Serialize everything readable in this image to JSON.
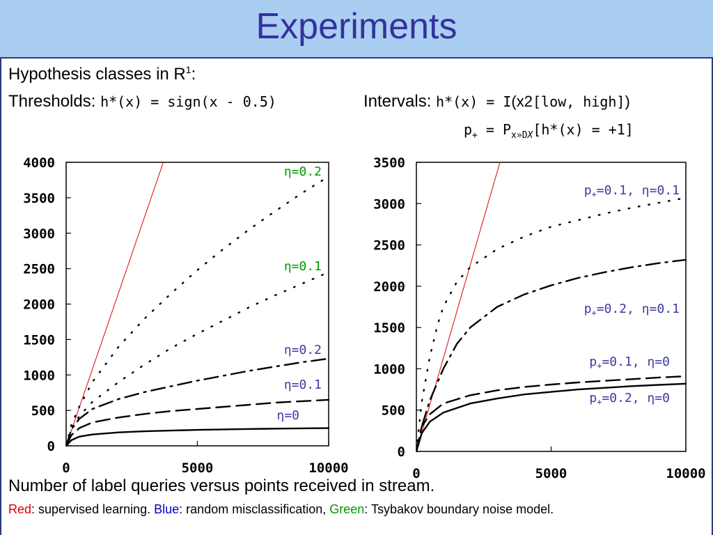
{
  "slide": {
    "title": "Experiments",
    "heading_text": "Hypothesis classes in R",
    "heading_sup": "1",
    "heading_colon": ":",
    "thresholds_label": "Thresholds:",
    "thresholds_formula": "h*(x) = sign(x - 0.5)",
    "intervals_label": "Intervals:",
    "intervals_formula_a": "h*(x) = I",
    "intervals_formula_b": "(x2",
    "intervals_formula_c": "[low, high]",
    "intervals_formula_d": ")",
    "pplus_lhs": "p",
    "pplus_lhs_sub": "+",
    "pplus_eq": " = P",
    "pplus_sub": "x»D",
    "pplus_sub_x": "X",
    "pplus_rhs": "[h*(x) = +1]",
    "caption_line1": "Number of label queries versus points received in stream.",
    "caption_red": "Red",
    "caption_red_rest": ": supervised learning. ",
    "caption_blue": "Blue",
    "caption_blue_rest": ": random misclassification, ",
    "caption_green": "Green",
    "caption_green_rest": ": Tsybakov boundary noise model."
  },
  "colors": {
    "header_bg": "#aacdf2",
    "title": "#35329b",
    "red": "#dd0000",
    "blue": "#0000cc",
    "green": "#009900",
    "annot_blue": "#3a3aa0",
    "annot_green": "#009900"
  },
  "chart_data": [
    {
      "type": "line",
      "xlim": [
        0,
        10000
      ],
      "ylim": [
        0,
        4000
      ],
      "xticks": [
        0,
        5000,
        10000
      ],
      "yticks": [
        0,
        500,
        1000,
        1500,
        2000,
        2500,
        3000,
        3500,
        4000
      ],
      "series": [
        {
          "label": "",
          "color": "#dd0000",
          "style": "solid-thin",
          "x": [
            0,
            3700
          ],
          "y": [
            0,
            4000
          ]
        },
        {
          "label": "η=0.2",
          "label_color": "green",
          "color": "#000000",
          "style": "dotted",
          "x": [
            0,
            200,
            500,
            1000,
            2000,
            3000,
            4000,
            5000,
            6000,
            7000,
            8000,
            9000,
            10000
          ],
          "y": [
            0,
            300,
            550,
            900,
            1400,
            1800,
            2150,
            2480,
            2780,
            3060,
            3320,
            3570,
            3800
          ]
        },
        {
          "label": "η=0.1",
          "label_color": "green",
          "color": "#000000",
          "style": "dotted",
          "x": [
            0,
            200,
            500,
            1000,
            2000,
            3000,
            4000,
            5000,
            6000,
            7000,
            8000,
            9000,
            10000
          ],
          "y": [
            0,
            250,
            420,
            620,
            900,
            1150,
            1380,
            1580,
            1770,
            1960,
            2130,
            2290,
            2450
          ]
        },
        {
          "label": "η=0.2",
          "label_color": "blue",
          "color": "#000000",
          "style": "dashdot",
          "x": [
            0,
            200,
            500,
            1000,
            2000,
            3000,
            4000,
            5000,
            6000,
            7000,
            8000,
            9000,
            10000
          ],
          "y": [
            0,
            230,
            380,
            520,
            660,
            760,
            840,
            920,
            990,
            1060,
            1120,
            1180,
            1230
          ]
        },
        {
          "label": "η=0.1",
          "label_color": "blue",
          "color": "#000000",
          "style": "dashed",
          "x": [
            0,
            200,
            500,
            1000,
            2000,
            3000,
            4000,
            5000,
            6000,
            7000,
            8000,
            9000,
            10000
          ],
          "y": [
            0,
            150,
            250,
            330,
            400,
            450,
            490,
            520,
            550,
            580,
            610,
            630,
            650
          ]
        },
        {
          "label": "η=0",
          "label_color": "blue",
          "color": "#000000",
          "style": "solid",
          "x": [
            0,
            200,
            500,
            1000,
            2000,
            3000,
            4000,
            5000,
            6000,
            7000,
            8000,
            9000,
            10000
          ],
          "y": [
            0,
            80,
            130,
            160,
            190,
            205,
            215,
            225,
            232,
            238,
            243,
            247,
            250
          ]
        }
      ]
    },
    {
      "type": "line",
      "xlim": [
        0,
        10000
      ],
      "ylim": [
        0,
        3500
      ],
      "xticks": [
        0,
        5000,
        10000
      ],
      "yticks": [
        0,
        500,
        1000,
        1500,
        2000,
        2500,
        3000,
        3500
      ],
      "series": [
        {
          "label": "",
          "color": "#dd0000",
          "style": "solid-thin",
          "x": [
            0,
            3100
          ],
          "y": [
            0,
            3500
          ]
        },
        {
          "label": "p+=0.1, η=0.1",
          "label_color": "blue",
          "color": "#000000",
          "style": "dotted",
          "x": [
            0,
            200,
            500,
            800,
            1000,
            1500,
            2000,
            3000,
            4000,
            5000,
            6000,
            7000,
            8000,
            9000,
            10000
          ],
          "y": [
            0,
            600,
            1150,
            1550,
            1750,
            2050,
            2230,
            2450,
            2600,
            2720,
            2800,
            2880,
            2950,
            3010,
            3070
          ]
        },
        {
          "label": "p+=0.2, η=0.1",
          "label_color": "blue",
          "color": "#000000",
          "style": "dashdot",
          "x": [
            0,
            200,
            500,
            1000,
            1500,
            2000,
            3000,
            4000,
            5000,
            6000,
            7000,
            8000,
            9000,
            10000
          ],
          "y": [
            0,
            300,
            620,
            1000,
            1300,
            1500,
            1750,
            1900,
            2010,
            2100,
            2170,
            2230,
            2280,
            2320
          ]
        },
        {
          "label": "p+=0.1, η=0",
          "label_color": "blue",
          "color": "#000000",
          "style": "dashed",
          "x": [
            0,
            200,
            500,
            1000,
            2000,
            3000,
            4000,
            5000,
            6000,
            7000,
            8000,
            9000,
            10000
          ],
          "y": [
            0,
            300,
            450,
            580,
            680,
            740,
            780,
            810,
            835,
            855,
            875,
            895,
            910
          ]
        },
        {
          "label": "p+=0.2, η=0",
          "label_color": "blue",
          "color": "#000000",
          "style": "solid",
          "x": [
            0,
            200,
            500,
            1000,
            2000,
            3000,
            4000,
            5000,
            6000,
            7000,
            8000,
            9000,
            10000
          ],
          "y": [
            0,
            220,
            360,
            470,
            580,
            640,
            690,
            720,
            750,
            770,
            790,
            805,
            820
          ]
        }
      ]
    }
  ]
}
